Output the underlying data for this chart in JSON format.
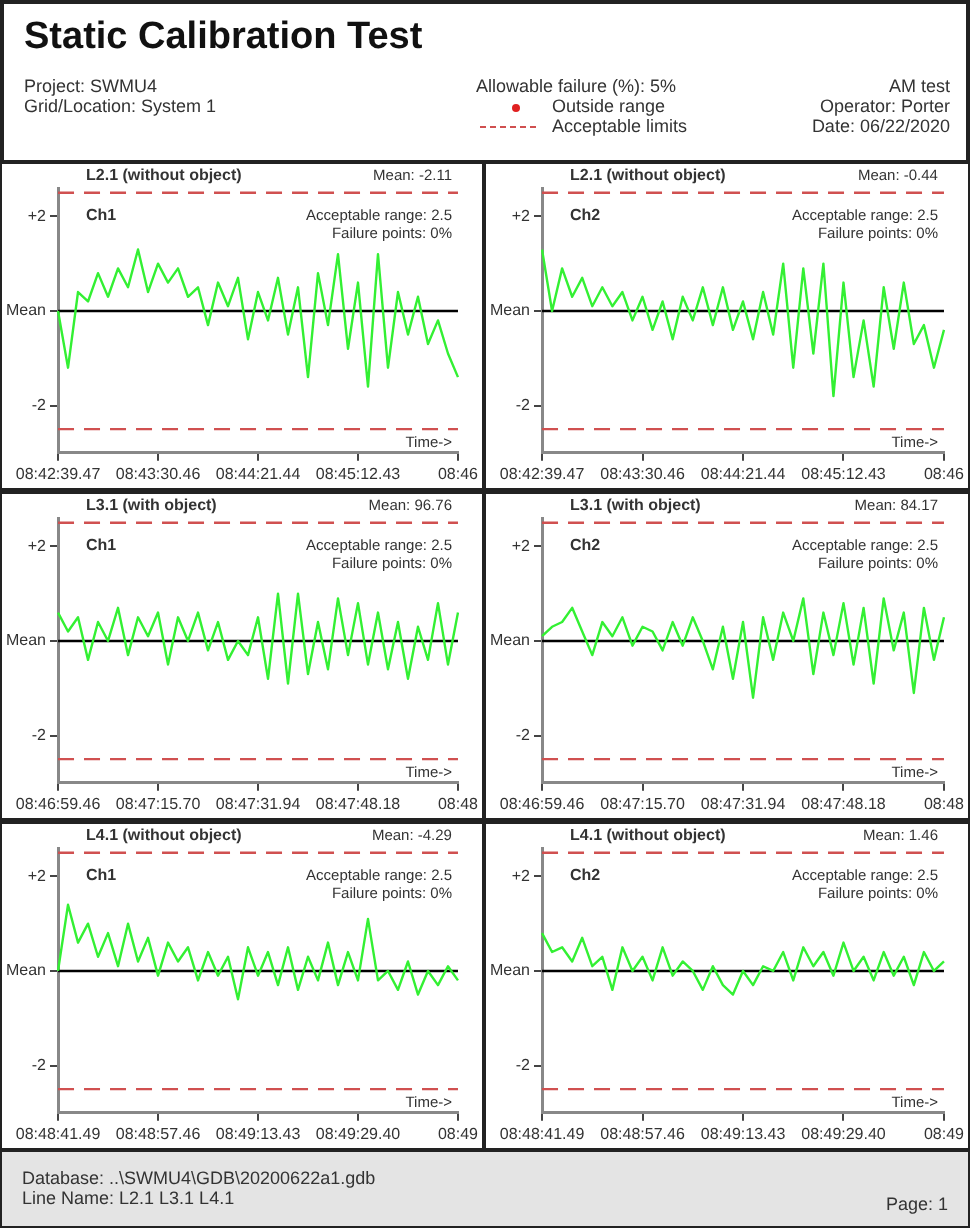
{
  "chart_data": [
    {
      "type": "other",
      "title": "Static Calibration Test",
      "annotations": [
        "Project: SWMU4",
        "Grid/Location:  System 1",
        "Allowable failure (%): 5%",
        "Outside range",
        "Acceptable limits",
        "AM test",
        "Operator: Porter",
        "Date: 06/22/2020"
      ]
    },
    {
      "type": "line",
      "title": "L2.1 (without object)",
      "subtitle": "Ch1",
      "annotations": [
        "Mean: -2.11",
        "Acceptable range: 2.5",
        "Failure points: 0%",
        "Time->"
      ],
      "legend": false,
      "grid": false,
      "ylim": [
        -3,
        2.6
      ],
      "yticks": [
        {
          "value": 2,
          "label": "+2"
        },
        {
          "value": 0,
          "label": "Mean"
        },
        {
          "value": -2,
          "label": "-2"
        }
      ],
      "ref_lines": [
        {
          "axis": "y",
          "value": 0,
          "color": "#000000",
          "line_style": "solid"
        },
        {
          "axis": "y",
          "value": 2.5,
          "color": "#d05050",
          "line_style": "dashed"
        },
        {
          "axis": "y",
          "value": -2.5,
          "color": "#d05050",
          "line_style": "dashed"
        }
      ],
      "categories": [
        "08:42:39.47",
        null,
        null,
        null,
        null,
        null,
        null,
        null,
        null,
        null,
        "08:43:30.46",
        null,
        null,
        null,
        null,
        null,
        null,
        null,
        null,
        null,
        "08:44:21.44",
        null,
        null,
        null,
        null,
        null,
        null,
        null,
        null,
        null,
        "08:45:12.43",
        null,
        null,
        null,
        null,
        null,
        null,
        null,
        null,
        null,
        "08:46"
      ],
      "series": [
        {
          "color": "#33f033",
          "values": [
            0,
            -1.2,
            0.4,
            0.2,
            0.8,
            0.3,
            0.9,
            0.5,
            1.3,
            0.4,
            1.0,
            0.6,
            0.9,
            0.3,
            0.5,
            -0.3,
            0.6,
            0.1,
            0.7,
            -0.6,
            0.4,
            -0.2,
            0.7,
            -0.5,
            0.5,
            -1.4,
            0.8,
            -0.3,
            1.2,
            -0.8,
            0.6,
            -1.6,
            1.2,
            -1.2,
            0.4,
            -0.5,
            0.3,
            -0.7,
            -0.2,
            -0.9,
            -1.4
          ]
        }
      ]
    },
    {
      "type": "line",
      "title": "L2.1 (without object)",
      "subtitle": "Ch2",
      "annotations": [
        "Mean: -0.44",
        "Acceptable range: 2.5",
        "Failure points: 0%",
        "Time->"
      ],
      "legend": false,
      "grid": false,
      "ylim": [
        -3,
        2.6
      ],
      "yticks": [
        {
          "value": 2,
          "label": "+2"
        },
        {
          "value": 0,
          "label": "Mean"
        },
        {
          "value": -2,
          "label": "-2"
        }
      ],
      "ref_lines": [
        {
          "axis": "y",
          "value": 0,
          "color": "#000000",
          "line_style": "solid"
        },
        {
          "axis": "y",
          "value": 2.5,
          "color": "#d05050",
          "line_style": "dashed"
        },
        {
          "axis": "y",
          "value": -2.5,
          "color": "#d05050",
          "line_style": "dashed"
        }
      ],
      "categories": [
        "08:42:39.47",
        null,
        null,
        null,
        null,
        null,
        null,
        null,
        null,
        null,
        "08:43:30.46",
        null,
        null,
        null,
        null,
        null,
        null,
        null,
        null,
        null,
        "08:44:21.44",
        null,
        null,
        null,
        null,
        null,
        null,
        null,
        null,
        null,
        "08:45:12.43",
        null,
        null,
        null,
        null,
        null,
        null,
        null,
        null,
        null,
        "08:46"
      ],
      "series": [
        {
          "color": "#33f033",
          "values": [
            1.3,
            0,
            0.9,
            0.3,
            0.7,
            0.1,
            0.5,
            0.1,
            0.4,
            -0.2,
            0.3,
            -0.4,
            0.2,
            -0.6,
            0.3,
            -0.2,
            0.5,
            -0.3,
            0.5,
            -0.4,
            0.2,
            -0.6,
            0.4,
            -0.5,
            1.0,
            -1.2,
            0.9,
            -0.9,
            1.0,
            -1.8,
            0.6,
            -1.4,
            -0.2,
            -1.6,
            0.5,
            -0.8,
            0.6,
            -0.7,
            -0.3,
            -1.2,
            -0.4
          ]
        }
      ]
    },
    {
      "type": "line",
      "title": "L3.1 (with object)",
      "subtitle": "Ch1",
      "annotations": [
        "Mean: 96.76",
        "Acceptable range: 2.5",
        "Failure points: 0%",
        "Time->"
      ],
      "legend": false,
      "grid": false,
      "ylim": [
        -3,
        2.6
      ],
      "yticks": [
        {
          "value": 2,
          "label": "+2"
        },
        {
          "value": 0,
          "label": "Mean"
        },
        {
          "value": -2,
          "label": "-2"
        }
      ],
      "ref_lines": [
        {
          "axis": "y",
          "value": 0,
          "color": "#000000",
          "line_style": "solid"
        },
        {
          "axis": "y",
          "value": 2.5,
          "color": "#d05050",
          "line_style": "dashed"
        },
        {
          "axis": "y",
          "value": -2.5,
          "color": "#d05050",
          "line_style": "dashed"
        }
      ],
      "categories": [
        "08:46:59.46",
        null,
        null,
        null,
        null,
        null,
        null,
        null,
        null,
        null,
        "08:47:15.70",
        null,
        null,
        null,
        null,
        null,
        null,
        null,
        null,
        null,
        "08:47:31.94",
        null,
        null,
        null,
        null,
        null,
        null,
        null,
        null,
        null,
        "08:47:48.18",
        null,
        null,
        null,
        null,
        null,
        null,
        null,
        null,
        null,
        "08:48"
      ],
      "series": [
        {
          "color": "#33f033",
          "values": [
            0.6,
            0.2,
            0.5,
            -0.4,
            0.4,
            0.0,
            0.7,
            -0.3,
            0.5,
            0.1,
            0.6,
            -0.5,
            0.5,
            0.0,
            0.6,
            -0.2,
            0.4,
            -0.4,
            0.0,
            -0.3,
            0.5,
            -0.8,
            1.0,
            -0.9,
            1.0,
            -0.7,
            0.4,
            -0.6,
            0.9,
            -0.3,
            0.8,
            -0.5,
            0.6,
            -0.6,
            0.4,
            -0.8,
            0.3,
            -0.4,
            0.8,
            -0.5,
            0.6
          ]
        }
      ]
    },
    {
      "type": "line",
      "title": "L3.1 (with object)",
      "subtitle": "Ch2",
      "annotations": [
        "Mean: 84.17",
        "Acceptable range: 2.5",
        "Failure points: 0%",
        "Time->"
      ],
      "legend": false,
      "grid": false,
      "ylim": [
        -3,
        2.6
      ],
      "yticks": [
        {
          "value": 2,
          "label": "+2"
        },
        {
          "value": 0,
          "label": "Mean"
        },
        {
          "value": -2,
          "label": "-2"
        }
      ],
      "ref_lines": [
        {
          "axis": "y",
          "value": 0,
          "color": "#000000",
          "line_style": "solid"
        },
        {
          "axis": "y",
          "value": 2.5,
          "color": "#d05050",
          "line_style": "dashed"
        },
        {
          "axis": "y",
          "value": -2.5,
          "color": "#d05050",
          "line_style": "dashed"
        }
      ],
      "categories": [
        "08:46:59.46",
        null,
        null,
        null,
        null,
        null,
        null,
        null,
        null,
        null,
        "08:47:15.70",
        null,
        null,
        null,
        null,
        null,
        null,
        null,
        null,
        null,
        "08:47:31.94",
        null,
        null,
        null,
        null,
        null,
        null,
        null,
        null,
        null,
        "08:47:48.18",
        null,
        null,
        null,
        null,
        null,
        null,
        null,
        null,
        null,
        "08:48"
      ],
      "series": [
        {
          "color": "#33f033",
          "values": [
            0.1,
            0.3,
            0.4,
            0.7,
            0.2,
            -0.3,
            0.4,
            0.1,
            0.5,
            -0.1,
            0.3,
            0.2,
            -0.2,
            0.4,
            -0.1,
            0.5,
            0.0,
            -0.6,
            0.3,
            -0.8,
            0.4,
            -1.2,
            0.5,
            -0.4,
            0.6,
            0.0,
            0.9,
            -0.7,
            0.6,
            -0.3,
            0.8,
            -0.5,
            0.7,
            -0.9,
            0.9,
            -0.2,
            0.6,
            -1.1,
            0.7,
            -0.4,
            0.5
          ]
        }
      ]
    },
    {
      "type": "line",
      "title": "L4.1 (without object)",
      "subtitle": "Ch1",
      "annotations": [
        "Mean: -4.29",
        "Acceptable range: 2.5",
        "Failure points: 0%",
        "Time->"
      ],
      "legend": false,
      "grid": false,
      "ylim": [
        -3,
        2.6
      ],
      "yticks": [
        {
          "value": 2,
          "label": "+2"
        },
        {
          "value": 0,
          "label": "Mean"
        },
        {
          "value": -2,
          "label": "-2"
        }
      ],
      "ref_lines": [
        {
          "axis": "y",
          "value": 0,
          "color": "#000000",
          "line_style": "solid"
        },
        {
          "axis": "y",
          "value": 2.5,
          "color": "#d05050",
          "line_style": "dashed"
        },
        {
          "axis": "y",
          "value": -2.5,
          "color": "#d05050",
          "line_style": "dashed"
        }
      ],
      "categories": [
        "08:48:41.49",
        null,
        null,
        null,
        null,
        null,
        null,
        null,
        null,
        null,
        "08:48:57.46",
        null,
        null,
        null,
        null,
        null,
        null,
        null,
        null,
        null,
        "08:49:13.43",
        null,
        null,
        null,
        null,
        null,
        null,
        null,
        null,
        null,
        "08:49:29.40",
        null,
        null,
        null,
        null,
        null,
        null,
        null,
        null,
        null,
        "08:49"
      ],
      "series": [
        {
          "color": "#33f033",
          "values": [
            0,
            1.4,
            0.6,
            1.0,
            0.3,
            0.8,
            0.1,
            1.0,
            0.2,
            0.7,
            -0.1,
            0.6,
            0.2,
            0.5,
            -0.2,
            0.4,
            -0.1,
            0.3,
            -0.6,
            0.5,
            -0.1,
            0.4,
            -0.3,
            0.5,
            -0.4,
            0.3,
            -0.2,
            0.6,
            -0.3,
            0.4,
            -0.2,
            1.1,
            -0.2,
            0.0,
            -0.4,
            0.2,
            -0.5,
            0.0,
            -0.3,
            0.1,
            -0.2
          ]
        }
      ]
    },
    {
      "type": "line",
      "title": "L4.1 (without object)",
      "subtitle": "Ch2",
      "annotations": [
        "Mean: 1.46",
        "Acceptable range: 2.5",
        "Failure points: 0%",
        "Time->"
      ],
      "legend": false,
      "grid": false,
      "ylim": [
        -3,
        2.6
      ],
      "yticks": [
        {
          "value": 2,
          "label": "+2"
        },
        {
          "value": 0,
          "label": "Mean"
        },
        {
          "value": -2,
          "label": "-2"
        }
      ],
      "ref_lines": [
        {
          "axis": "y",
          "value": 0,
          "color": "#000000",
          "line_style": "solid"
        },
        {
          "axis": "y",
          "value": 2.5,
          "color": "#d05050",
          "line_style": "dashed"
        },
        {
          "axis": "y",
          "value": -2.5,
          "color": "#d05050",
          "line_style": "dashed"
        }
      ],
      "categories": [
        "08:48:41.49",
        null,
        null,
        null,
        null,
        null,
        null,
        null,
        null,
        null,
        "08:48:57.46",
        null,
        null,
        null,
        null,
        null,
        null,
        null,
        null,
        null,
        "08:49:13.43",
        null,
        null,
        null,
        null,
        null,
        null,
        null,
        null,
        null,
        "08:49:29.40",
        null,
        null,
        null,
        null,
        null,
        null,
        null,
        null,
        null,
        "08:49"
      ],
      "series": [
        {
          "color": "#33f033",
          "values": [
            0.8,
            0.4,
            0.5,
            0.2,
            0.7,
            0.1,
            0.3,
            -0.4,
            0.5,
            0.0,
            0.3,
            -0.2,
            0.5,
            -0.1,
            0.2,
            0.0,
            -0.4,
            0.1,
            -0.3,
            -0.5,
            0.0,
            -0.3,
            0.1,
            0.0,
            0.4,
            -0.2,
            0.5,
            0.1,
            0.4,
            -0.1,
            0.6,
            0.0,
            0.3,
            -0.2,
            0.4,
            -0.1,
            0.3,
            -0.3,
            0.4,
            0.0,
            0.2
          ]
        }
      ]
    },
    {
      "type": "other",
      "annotations": [
        "Database: ..\\SWMU4\\GDB\\20200622a1.gdb",
        "Line Name: L2.1 L3.1 L4.1",
        "Page: 1"
      ]
    }
  ]
}
